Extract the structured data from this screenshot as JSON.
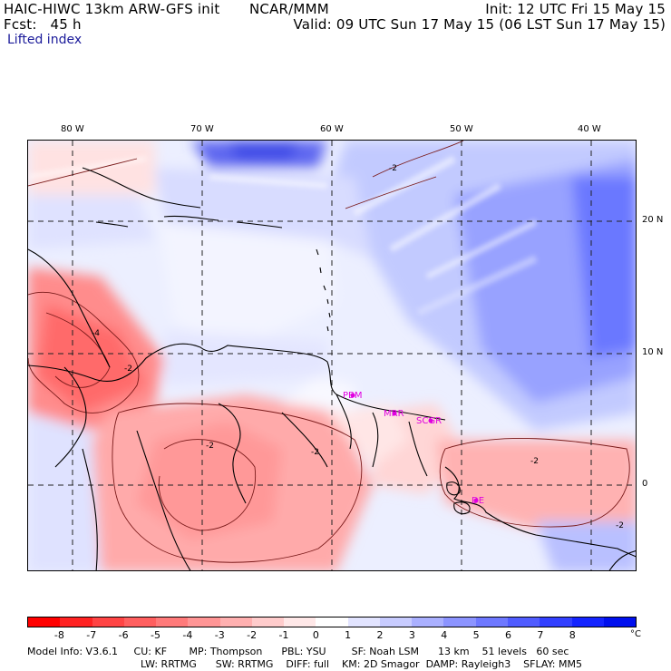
{
  "header": {
    "model_title": "HAIC-HIWC 13km ARW-GFS init",
    "org": "NCAR/MMM",
    "init": "Init: 12 UTC Fri 15 May 15",
    "fcst": "Fcst:   45 h",
    "valid": "Valid: 09 UTC Sun 17 May 15 (06 LST Sun 17 May 15)",
    "field": "Lifted index"
  },
  "map": {
    "lon_labels": [
      "80 W",
      "70 W",
      "60 W",
      "50 W",
      "40 W"
    ],
    "lat_labels": [
      "20 N",
      "10 N",
      "0"
    ],
    "station_labels": [
      "PBM",
      "MRR",
      "SCGR",
      "DE"
    ],
    "contour_labels": [
      "-2",
      "-2",
      "-2",
      "-2",
      "-2",
      "-4",
      "-2"
    ],
    "colors": {
      "negative_strong": "#ff3333",
      "negative_weak": "#ffd0d0",
      "neutral": "#fff4f4",
      "positive_weak": "#d6dcff",
      "positive_strong": "#1a1ad8",
      "station": "#e000e0"
    }
  },
  "colorbar": {
    "labels": [
      "-8",
      "-7",
      "-6",
      "-5",
      "-4",
      "-3",
      "-2",
      "-1",
      "0",
      "1",
      "2",
      "3",
      "4",
      "5",
      "6",
      "7",
      "8"
    ],
    "unit": "°C",
    "colors": [
      "#ff0000",
      "#ff2222",
      "#ff4444",
      "#ff5f5f",
      "#ff7a7a",
      "#ff9595",
      "#ffb0b0",
      "#ffcccc",
      "#ffe8e8",
      "#ffffff",
      "#e2e4ff",
      "#c8ccff",
      "#aab0ff",
      "#8c94ff",
      "#6e78ff",
      "#505cff",
      "#3240ff",
      "#1424ff",
      "#0010ee"
    ]
  },
  "footer": {
    "line1": "Model Info: V3.6.1     CU: KF       MP: Thompson      PBL: YSU        SF: Noah LSM      13 km    51 levels   60 sec",
    "line2": "LW: RRTMG      SW: RRTMG    DIFF: full    KM: 2D Smagor  DAMP: Rayleigh3    SFLAY: MM5"
  }
}
